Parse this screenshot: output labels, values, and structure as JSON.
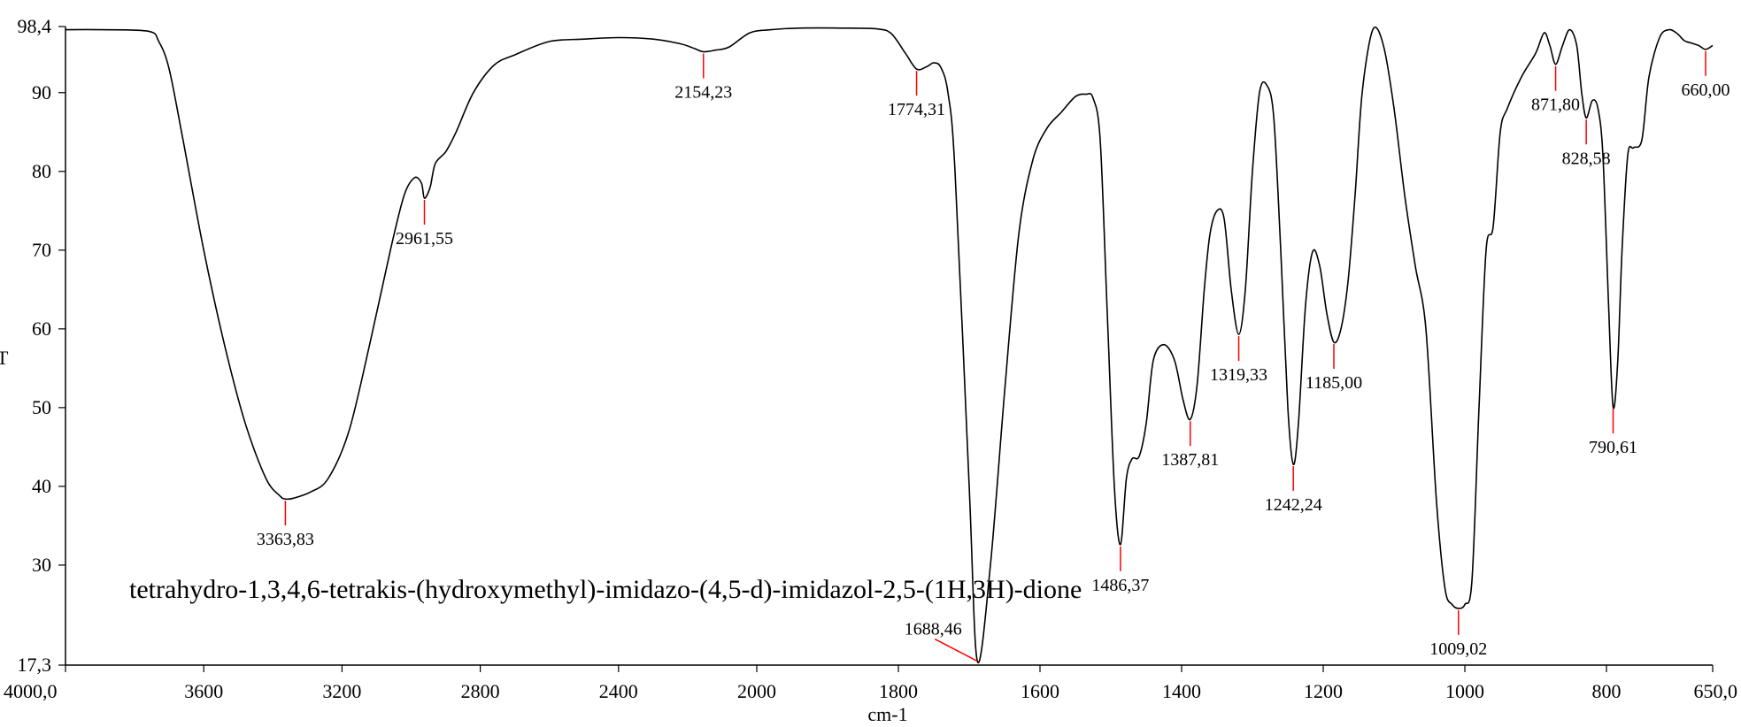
{
  "chart_data": {
    "type": "line",
    "title": "",
    "annotation": "tetrahydro-1,3,4,6-tetrakis-(hydroxymethyl)-imidazo-(4,5-d)-imidazol-2,5-(1H,3H)-dione",
    "xlabel": "cm-1",
    "ylabel": "T",
    "xlim": [
      4000,
      650
    ],
    "ylim": [
      17.3,
      98.4
    ],
    "x_reversed": true,
    "grid": false,
    "legend": "none",
    "x_ticks": [
      "4000,0",
      "3600",
      "3200",
      "2800",
      "2400",
      "2000",
      "1800",
      "1600",
      "1400",
      "1200",
      "1000",
      "800",
      "650,0"
    ],
    "x_tick_values": [
      4000,
      3600,
      3200,
      2800,
      2400,
      2000,
      1800,
      1600,
      1400,
      1200,
      1000,
      800,
      650
    ],
    "y_ticks": [
      "98,4",
      "90",
      "80",
      "70",
      "60",
      "50",
      "40",
      "30",
      "17,3"
    ],
    "y_tick_values": [
      98.4,
      90,
      80,
      70,
      60,
      50,
      40,
      30,
      17.3
    ],
    "line_color": "#000000",
    "marker_color": "#ff0000",
    "series": [
      {
        "x": [
          4000,
          3900,
          3760,
          3730,
          3700,
          3660,
          3600,
          3540,
          3480,
          3420,
          3380,
          3363.83,
          3340,
          3290,
          3240,
          3180,
          3120,
          3060,
          3020,
          2990,
          2970,
          2961.55,
          2945,
          2930,
          2900,
          2870,
          2820,
          2760,
          2700,
          2600,
          2500,
          2400,
          2300,
          2220,
          2180,
          2154.23,
          2120,
          2080,
          2020,
          1980,
          1940,
          1880,
          1830,
          1810,
          1790,
          1774.31,
          1760,
          1750,
          1740,
          1730,
          1720,
          1700,
          1688.46,
          1670,
          1650,
          1630,
          1610,
          1590,
          1570,
          1550,
          1535,
          1525,
          1515,
          1505,
          1495,
          1486.37,
          1478,
          1470,
          1460,
          1450,
          1440,
          1425,
          1410,
          1398,
          1387.81,
          1378,
          1368,
          1360,
          1350,
          1340,
          1330,
          1319.33,
          1310,
          1300,
          1290,
          1280,
          1270,
          1260,
          1250,
          1242.24,
          1235,
          1225,
          1215,
          1205,
          1195,
          1185,
          1175,
          1165,
          1155,
          1145,
          1130,
          1115,
          1100,
          1085,
          1070,
          1055,
          1040,
          1028,
          1018,
          1009.02,
          1000,
          990,
          980,
          970,
          960,
          950,
          940,
          920,
          900,
          888,
          880,
          871.8,
          862,
          852,
          842,
          835,
          828.58,
          820,
          812,
          805,
          797,
          790.61,
          784,
          778,
          770,
          762,
          750,
          740,
          725,
          712,
          700,
          690,
          680,
          670,
          660,
          650
        ],
        "y": [
          98.0,
          98.0,
          97.8,
          96.5,
          93,
          84,
          70,
          58,
          48,
          41,
          38.8,
          38.4,
          38.5,
          39.3,
          41,
          47,
          58,
          70,
          77,
          79.2,
          78.5,
          76.6,
          78,
          81,
          82.5,
          85,
          90,
          93.5,
          94.8,
          96.5,
          96.8,
          97,
          96.8,
          96.2,
          95.6,
          95.2,
          95.4,
          95.8,
          97.6,
          98.0,
          98.2,
          98.2,
          98.1,
          97.5,
          95,
          93,
          93.3,
          93.8,
          93.2,
          90,
          80,
          40,
          17.8,
          30,
          52,
          72,
          81.5,
          85.5,
          87.5,
          89.5,
          89.8,
          89.3,
          84,
          62,
          40,
          32.6,
          41,
          43.5,
          43.8,
          48,
          56,
          58,
          56,
          51,
          48.5,
          53,
          65,
          72,
          75,
          74,
          65,
          59.3,
          65,
          80,
          90,
          91,
          87,
          70,
          50,
          42.8,
          48,
          63,
          69.8,
          68,
          62,
          58.3,
          60,
          66,
          77,
          90,
          98.0,
          96,
          88,
          77,
          68,
          60,
          38,
          27,
          25,
          24.5,
          25,
          28,
          50,
          70,
          73,
          85,
          88,
          92,
          95,
          97.6,
          96,
          93.6,
          96,
          98,
          96,
          90,
          86.8,
          89,
          88,
          82,
          63,
          50.1,
          56,
          70,
          82,
          83,
          84,
          92,
          97,
          98.0,
          97.5,
          96.6,
          96.3,
          96.0,
          95.5,
          96
        ]
      }
    ],
    "peaks": [
      {
        "x": 3363.83,
        "label": "3363,83"
      },
      {
        "x": 2961.55,
        "label": "2961,55"
      },
      {
        "x": 2154.23,
        "label": "2154,23"
      },
      {
        "x": 1774.31,
        "label": "1774,31"
      },
      {
        "x": 1688.46,
        "label": "1688,46"
      },
      {
        "x": 1486.37,
        "label": "1486,37"
      },
      {
        "x": 1387.81,
        "label": "1387,81"
      },
      {
        "x": 1319.33,
        "label": "1319,33"
      },
      {
        "x": 1242.24,
        "label": "1242,24"
      },
      {
        "x": 1185.0,
        "label": "1185,00"
      },
      {
        "x": 1009.02,
        "label": "1009,02"
      },
      {
        "x": 871.8,
        "label": "871,80"
      },
      {
        "x": 828.58,
        "label": "828,58"
      },
      {
        "x": 790.61,
        "label": "790,61"
      },
      {
        "x": 660.0,
        "label": "660,00"
      }
    ]
  }
}
